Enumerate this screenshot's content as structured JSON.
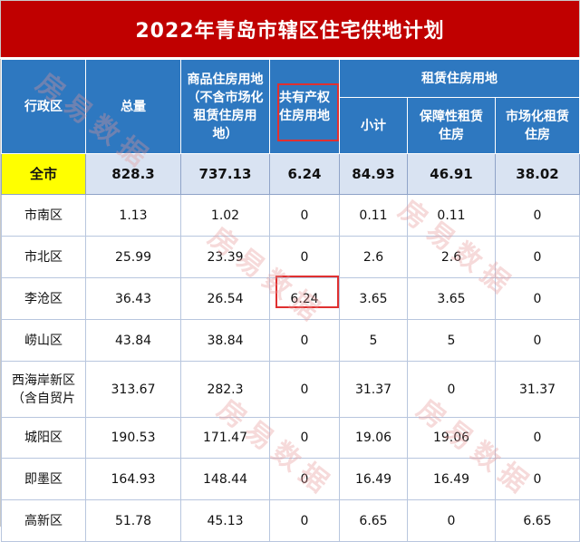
{
  "title": "2022年青岛市辖区住宅供地计划",
  "headers": {
    "region": "行政区",
    "total": "总量",
    "commercial": "商品住房用地（不含市场化租赁住房用地）",
    "shared": "共有产权住房用地",
    "rental_group": "租赁住房用地",
    "subtotal": "小计",
    "guaranteed": "保障性租赁住房",
    "market": "市场化租赁住房"
  },
  "total_row": {
    "region": "全市",
    "total": "828.3",
    "commercial": "737.13",
    "shared": "6.24",
    "subtotal": "84.93",
    "guaranteed": "46.91",
    "market": "38.02"
  },
  "rows": [
    {
      "region": "市南区",
      "total": "1.13",
      "commercial": "1.02",
      "shared": "0",
      "subtotal": "0.11",
      "guaranteed": "0.11",
      "market": "0"
    },
    {
      "region": "市北区",
      "total": "25.99",
      "commercial": "23.39",
      "shared": "0",
      "subtotal": "2.6",
      "guaranteed": "2.6",
      "market": "0"
    },
    {
      "region": "李沧区",
      "total": "36.43",
      "commercial": "26.54",
      "shared": "6.24",
      "subtotal": "3.65",
      "guaranteed": "3.65",
      "market": "0"
    },
    {
      "region": "崂山区",
      "total": "43.84",
      "commercial": "38.84",
      "shared": "0",
      "subtotal": "5",
      "guaranteed": "5",
      "market": "0"
    },
    {
      "region": "西海岸新区（含自贸片",
      "total": "313.67",
      "commercial": "282.3",
      "shared": "0",
      "subtotal": "31.37",
      "guaranteed": "0",
      "market": "31.37"
    },
    {
      "region": "城阳区",
      "total": "190.53",
      "commercial": "171.47",
      "shared": "0",
      "subtotal": "19.06",
      "guaranteed": "19.06",
      "market": "0"
    },
    {
      "region": "即墨区",
      "total": "164.93",
      "commercial": "148.44",
      "shared": "0",
      "subtotal": "16.49",
      "guaranteed": "16.49",
      "market": "0"
    },
    {
      "region": "高新区",
      "total": "51.78",
      "commercial": "45.13",
      "shared": "0",
      "subtotal": "6.65",
      "guaranteed": "0",
      "market": "6.65"
    }
  ],
  "watermark": "房易数据"
}
